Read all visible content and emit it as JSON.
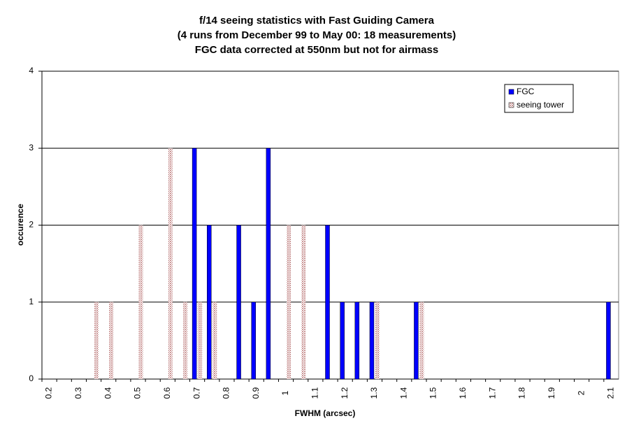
{
  "chart_data": {
    "type": "bar",
    "title": [
      "f/14 seeing statistics with Fast Guiding Camera",
      "(4 runs from December 99 to May 00: 18 measurements)",
      "FGC data corrected at 550nm but not for airmass"
    ],
    "x_label": "FWHM (arcsec)",
    "y_label": "occurence",
    "categories": [
      "0.2",
      null,
      "0.3",
      null,
      "0.4",
      null,
      "0.5",
      null,
      "0.6",
      null,
      "0.7",
      null,
      "0.8",
      null,
      "0.9",
      null,
      "1",
      null,
      "1.1",
      null,
      "1.2",
      null,
      "1.3",
      null,
      "1.4",
      null,
      "1.5",
      null,
      "1.6",
      null,
      "1.7",
      null,
      "1.8",
      null,
      "1.9",
      null,
      "2",
      null,
      "2.1"
    ],
    "series": [
      {
        "name": "FGC",
        "color": "#0000ff",
        "values": [
          0,
          0,
          0,
          0,
          0,
          0,
          0,
          0,
          0,
          0,
          3,
          2,
          0,
          2,
          1,
          3,
          0,
          0,
          0,
          2,
          1,
          1,
          1,
          0,
          0,
          1,
          0,
          0,
          0,
          0,
          0,
          0,
          0,
          0,
          0,
          0,
          0,
          0,
          1
        ]
      },
      {
        "name": "seeing tower",
        "color": "#cc9999",
        "values": [
          0,
          0,
          0,
          1,
          1,
          0,
          2,
          0,
          3,
          1,
          1,
          1,
          0,
          0,
          0,
          0,
          2,
          2,
          0,
          0,
          0,
          0,
          1,
          0,
          0,
          1,
          0,
          0,
          0,
          0,
          0,
          0,
          0,
          0,
          0,
          0,
          0,
          0,
          0
        ]
      }
    ],
    "ylim": [
      0,
      4
    ],
    "yticks": [
      0,
      1,
      2,
      3,
      4
    ],
    "grid": true,
    "legend": "top-right"
  }
}
